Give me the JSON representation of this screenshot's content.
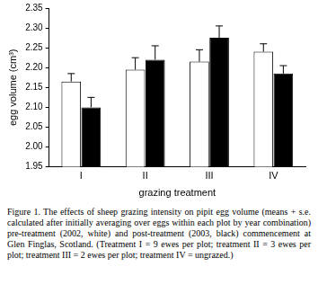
{
  "chart_data": {
    "type": "bar",
    "categories": [
      "I",
      "II",
      "III",
      "IV"
    ],
    "series": [
      {
        "color": "#ffffff",
        "values": [
          2.165,
          2.195,
          2.215,
          2.24
        ],
        "errors": [
          0.02,
          0.03,
          0.03,
          0.02
        ]
      },
      {
        "color": "#000000",
        "values": [
          2.1,
          2.22,
          2.275,
          2.185
        ],
        "errors": [
          0.025,
          0.035,
          0.03,
          0.02
        ]
      }
    ],
    "x_label": "grazing treatment",
    "y_label": "egg volume (cm³)",
    "ylim": [
      1.95,
      2.35
    ],
    "yticks": [
      1.95,
      {
        "value": 2,
        "label": "2.00"
      },
      2.05,
      {
        "value": 2.1,
        "label": "2.10"
      },
      2.15,
      {
        "value": 2.2,
        "label": "2.20"
      },
      2.25,
      {
        "value": 2.3,
        "label": "2.30"
      },
      2.35
    ],
    "grid": false,
    "caption": "Figure 1. The effects of sheep grazing intensity on pipit egg volume (means + s.e. calculated after initially averaging over eggs within each plot by year combination) pre-treatment (2002, white) and post-treatment (2003, black) commencement at Glen Finglas, Scotland. (Treatment I = 9 ewes per plot; treatment II = 3 ewes per plot; treatment III = 2 ewes per plot; treatment IV = ungrazed.)"
  }
}
